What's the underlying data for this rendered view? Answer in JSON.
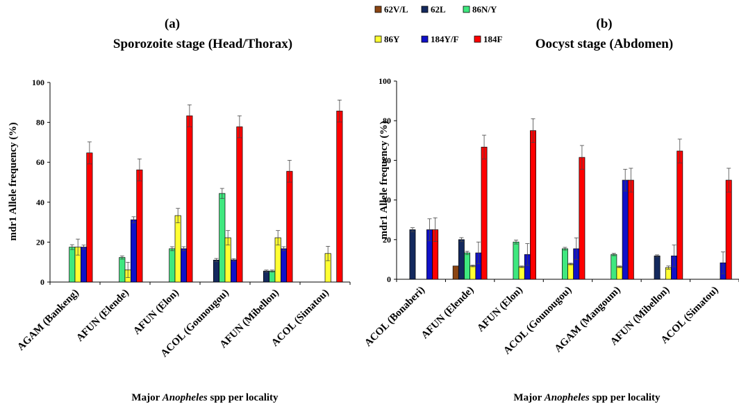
{
  "legend": [
    {
      "name": "62V/L",
      "color": "#8B4513"
    },
    {
      "name": "62L",
      "color": "#14295E"
    },
    {
      "name": "86N/Y",
      "color": "#3FE87F"
    },
    {
      "name": "86Y",
      "color": "#FFFF33"
    },
    {
      "name": "184Y/F",
      "color": "#1010C8"
    },
    {
      "name": "184F",
      "color": "#FF0000"
    }
  ],
  "chart_data": [
    {
      "type": "bar",
      "panel": "(a)",
      "title": "Sporozoite stage (Head/Thorax)",
      "ylabel": "mdr1 Allele frequency (%)",
      "xlabel": {
        "pre": "Major ",
        "italic": "Anopheles",
        "post": " spp per locality"
      },
      "ylim": [
        0,
        100
      ],
      "yticks": [
        "0",
        "20",
        "40",
        "60",
        "80",
        "100"
      ],
      "categories": [
        "AGAM (Bankeng)",
        "AFUN (Elende)",
        "AFUN (Elon)",
        "ACOL (Gounougou)",
        "AFUN (Mibellon)",
        "ACOL (Simatou)"
      ],
      "series": [
        {
          "name": "62V/L",
          "values": [
            0,
            0,
            0,
            0,
            0,
            0
          ],
          "err": [
            0,
            0,
            0,
            0,
            0,
            0
          ]
        },
        {
          "name": "62L",
          "values": [
            0,
            0,
            0,
            11,
            5.5,
            0
          ],
          "err": [
            0,
            0,
            0,
            0.8,
            0.5,
            0
          ]
        },
        {
          "name": "86N/Y",
          "values": [
            17.5,
            12.3,
            16.7,
            44.4,
            5.5,
            0
          ],
          "err": [
            1.2,
            0.8,
            1.0,
            2.5,
            0.5,
            0
          ]
        },
        {
          "name": "86Y",
          "values": [
            17.5,
            6.1,
            33.3,
            22.2,
            22.2,
            14.3
          ],
          "err": [
            4.0,
            3.8,
            3.6,
            3.6,
            3.6,
            3.6
          ]
        },
        {
          "name": "184Y/F",
          "values": [
            17.5,
            31.2,
            16.7,
            11.1,
            16.7,
            0
          ],
          "err": [
            1.0,
            1.5,
            1.0,
            0.6,
            1.0,
            0
          ]
        },
        {
          "name": "184F",
          "values": [
            64.7,
            56.2,
            83.3,
            77.8,
            55.5,
            85.7
          ],
          "err": [
            5.5,
            5.5,
            5.5,
            5.5,
            5.5,
            5.5
          ]
        }
      ]
    },
    {
      "type": "bar",
      "panel": "(b)",
      "title": "Oocyst stage (Abdomen)",
      "ylabel": "mdr1 Allele frequency (%)",
      "xlabel": {
        "pre": "Major ",
        "italic": "Anopheles",
        "post": " spp  per locality"
      },
      "ylim": [
        0,
        100
      ],
      "yticks": [
        "0",
        "20",
        "40",
        "60",
        "80",
        "100"
      ],
      "categories": [
        "ACOL (Bonaberi)",
        "AFUN (Elende)",
        "AFUN (Elon)",
        "ACOL (Gounougou)",
        "AGAM (Mangoum)",
        "AFUN (Mibellon)",
        "ACOL (Simatou)"
      ],
      "series": [
        {
          "name": "62V/L",
          "values": [
            0,
            6.7,
            0,
            0,
            0,
            0,
            0
          ],
          "err": [
            0,
            0,
            0,
            0,
            0,
            0,
            0
          ]
        },
        {
          "name": "62L",
          "values": [
            25,
            20,
            0,
            0,
            0,
            11.8,
            0
          ],
          "err": [
            1.0,
            1.0,
            0,
            0,
            0,
            0.5,
            0
          ]
        },
        {
          "name": "86N/Y",
          "values": [
            0,
            13.3,
            18.8,
            15.4,
            12.5,
            0,
            0
          ],
          "err": [
            0,
            0.8,
            1.0,
            0.7,
            0.6,
            0,
            0
          ]
        },
        {
          "name": "86Y",
          "values": [
            0,
            6.7,
            6.3,
            7.7,
            6.3,
            5.9,
            0
          ],
          "err": [
            0,
            0.4,
            0.4,
            0.4,
            0.4,
            0.8,
            0
          ]
        },
        {
          "name": "184Y/F",
          "values": [
            25,
            13.3,
            12.5,
            15.4,
            50,
            11.8,
            8.3
          ],
          "err": [
            5.5,
            5.5,
            5.5,
            5.5,
            5.5,
            5.5,
            5.5
          ]
        },
        {
          "name": "184F",
          "values": [
            25,
            66.7,
            75,
            61.5,
            50,
            64.7,
            50
          ],
          "err": [
            6.0,
            6.0,
            6.0,
            6.0,
            6.0,
            6.0,
            6.0
          ]
        }
      ]
    }
  ]
}
